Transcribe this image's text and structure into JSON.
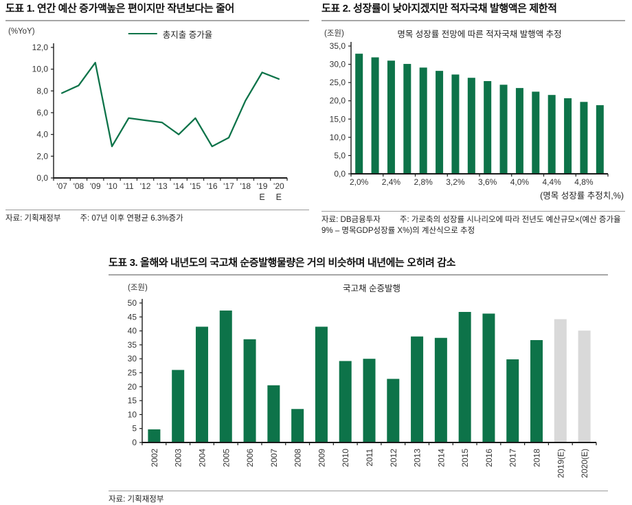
{
  "colors": {
    "green": "#0d7349",
    "estimate_gray": "#d9d9d9",
    "axis": "#1a1a1a",
    "tick_text": "#333333",
    "rule": "#a6a6a6"
  },
  "chart_data": [
    {
      "type": "line",
      "panel_title": "도표 1. 연간 예산 증가액높은 편이지만 작년보다는 줄어",
      "unit": "(%YoY)",
      "legend": "총지출 증가율",
      "categories": [
        "'07",
        "'08",
        "'09",
        "'10",
        "'11",
        "'12",
        "'13",
        "'14",
        "'15",
        "'16",
        "'17",
        "'18",
        "'19",
        "'20"
      ],
      "sub_labels": [
        "",
        "",
        "",
        "",
        "",
        "",
        "",
        "",
        "",
        "",
        "",
        "",
        "E",
        "E"
      ],
      "values": [
        7.8,
        8.5,
        10.6,
        2.9,
        5.5,
        5.3,
        5.1,
        4.0,
        5.5,
        2.9,
        3.7,
        7.1,
        9.7,
        9.1
      ],
      "ylim": [
        0,
        12
      ],
      "ytick_step": 2,
      "ytick_labels": [
        "0,0",
        "2,0",
        "4,0",
        "6,0",
        "8,0",
        "10,0",
        "12,0"
      ],
      "grid": "off",
      "legend_position": "top-center",
      "source": "자료: 기획재정부",
      "note": "주: 07년 이후 연평균 6.3%증가"
    },
    {
      "type": "bar",
      "panel_title": "도표 2. 성장률이 낮아지겠지만 적자국채 발행액은 제한적",
      "unit": "(조원)",
      "title": "명목 성장률 전망에 따른 적자국채 발행액 추정",
      "categories": [
        "2,0%",
        "",
        "2,4%",
        "",
        "2,8%",
        "",
        "3,2%",
        "",
        "3,6%",
        "",
        "4,0%",
        "",
        "4,4%",
        "",
        "4,8%",
        ""
      ],
      "values": [
        32.9,
        31.9,
        31.0,
        30.1,
        29.1,
        28.2,
        27.2,
        26.3,
        25.4,
        24.4,
        23.5,
        22.5,
        21.6,
        20.7,
        19.7,
        18.8
      ],
      "ylim": [
        0,
        35
      ],
      "ytick_step": 5,
      "ytick_labels": [
        "0,0",
        "5,0",
        "10,0",
        "15,0",
        "20,0",
        "25,0",
        "30,0",
        "35,0"
      ],
      "xaxis_note": "(명목 성장률 추정치,%)",
      "grid": "off",
      "source": "자료: DB금융투자",
      "note": "주: 가로축의 성장률 시나리오에 따라 전년도 예산규모×(예산 증가율 9% – 명목GDP성장률 X%)의 계산식으로 추정"
    },
    {
      "type": "bar",
      "panel_title": "도표 3. 올해와 내년도의 국고채 순증발행물량은 거의 비슷하며 내년에는 오히려 감소",
      "unit": "(조원)",
      "title": "국고채 순증발행",
      "categories": [
        "2002",
        "2003",
        "2004",
        "2005",
        "2006",
        "2007",
        "2008",
        "2009",
        "2010",
        "2011",
        "2012",
        "2013",
        "2014",
        "2015",
        "2016",
        "2017",
        "2018",
        "2019(E)",
        "2020(E)"
      ],
      "values": [
        4.7,
        26.0,
        41.5,
        47.3,
        37.0,
        20.5,
        12.0,
        41.5,
        29.2,
        30.0,
        22.8,
        38.0,
        37.5,
        46.8,
        46.2,
        29.8,
        36.7,
        44.2,
        40.1
      ],
      "estimate_start_index": 17,
      "ylim": [
        0,
        50
      ],
      "ytick_step": 5,
      "ytick_labels": [
        "0",
        "5",
        "10",
        "15",
        "20",
        "25",
        "30",
        "35",
        "40",
        "45",
        "50"
      ],
      "grid": "off",
      "source": "자료: 기획재정부"
    }
  ]
}
